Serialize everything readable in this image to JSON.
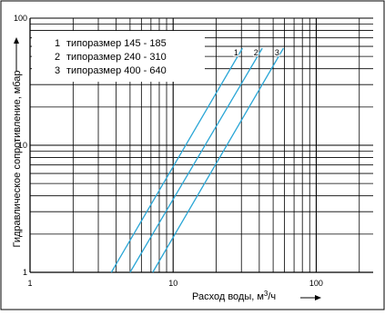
{
  "chart_data": {
    "type": "line",
    "xscale": "log",
    "yscale": "log",
    "xlim": [
      1,
      250
    ],
    "ylim": [
      1,
      100
    ],
    "xlabel": "Расход воды, м³/ч",
    "ylabel": "Гидравлическое сопротивление, мбар",
    "x_tick_labels": [
      {
        "value": 1,
        "label": "1"
      },
      {
        "value": 10,
        "label": "10"
      },
      {
        "value": 100,
        "label": "100"
      }
    ],
    "y_tick_labels": [
      {
        "value": 1,
        "label": "1"
      },
      {
        "value": 10,
        "label": "10"
      },
      {
        "value": 100,
        "label": "100"
      }
    ],
    "grid": true,
    "legend_position": "top-left",
    "line_color": "#2aa6d6",
    "series": [
      {
        "name": "типоразмер 145 - 185",
        "label": "1",
        "x": [
          3.7,
          30.5
        ],
        "y": [
          1,
          58
        ]
      },
      {
        "name": "типоразмер 240 - 310",
        "label": "2",
        "x": [
          5.0,
          42.0
        ],
        "y": [
          1,
          58
        ]
      },
      {
        "name": "типоразмер 400 - 640",
        "label": "3",
        "x": [
          7.2,
          59.0
        ],
        "y": [
          1,
          58
        ]
      }
    ],
    "legend": [
      {
        "number": "1",
        "text": "типоразмер 145 - 185"
      },
      {
        "number": "2",
        "text": "типоразмер 240 - 310"
      },
      {
        "number": "3",
        "text": "типоразмер 400 - 640"
      }
    ]
  }
}
